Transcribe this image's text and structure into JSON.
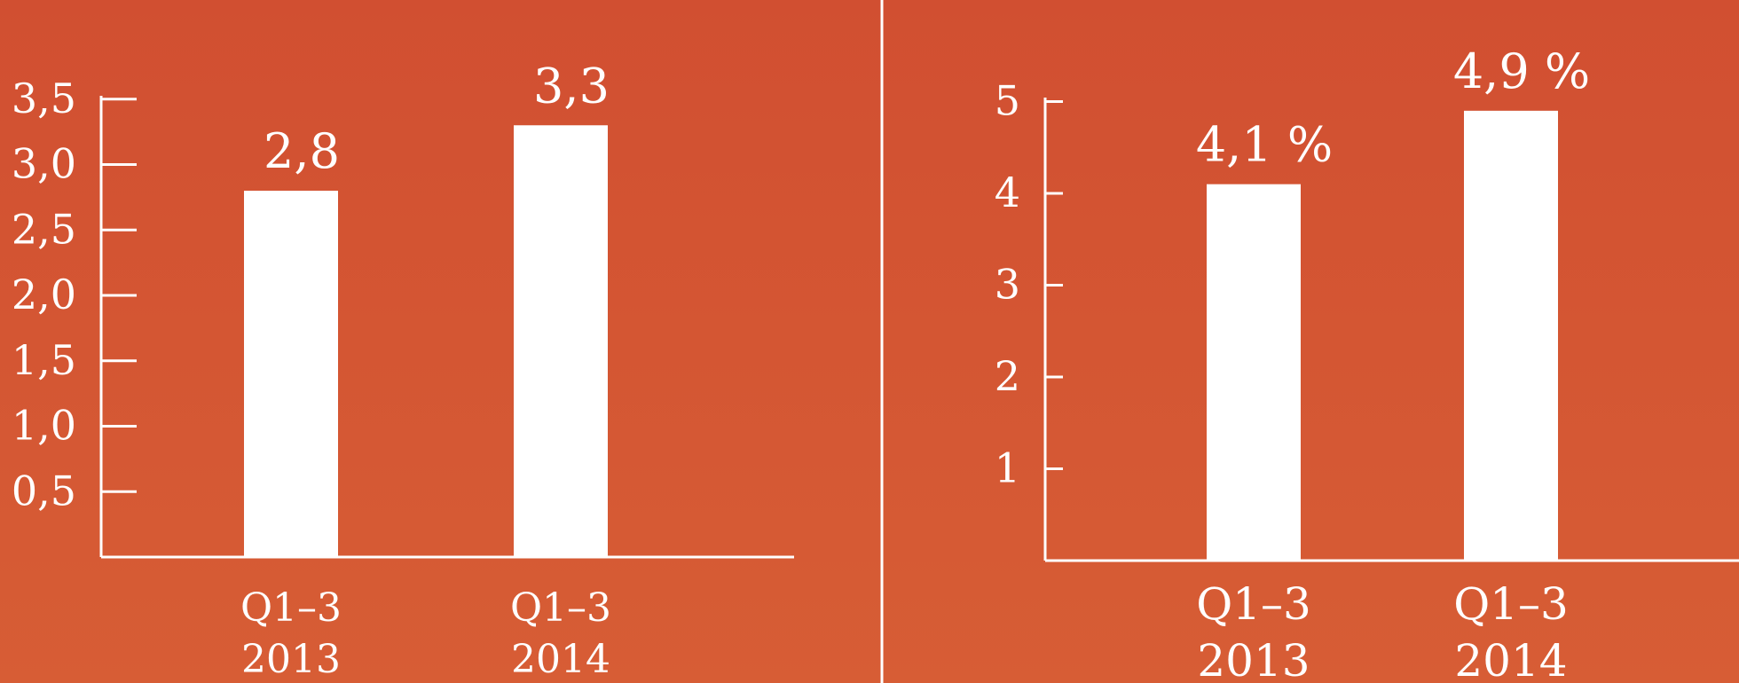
{
  "colors": {
    "background": "#d3532f",
    "bar": "#ffffff",
    "axis": "#ffffff",
    "text": "#ffffff",
    "divider": "#ffffff"
  },
  "chart_data": [
    {
      "type": "bar",
      "categories": [
        [
          "Q1–3",
          "2013"
        ],
        [
          "Q1–3",
          "2014"
        ]
      ],
      "values": [
        2.8,
        3.3
      ],
      "data_labels": [
        "2,8",
        "3,3"
      ],
      "ylim": [
        0,
        3.5
      ],
      "yticks": [
        0.5,
        1.0,
        1.5,
        2.0,
        2.5,
        3.0,
        3.5
      ],
      "ytick_labels": [
        "0,5",
        "1,0",
        "1,5",
        "2,0",
        "2,5",
        "3,0",
        "3,5"
      ],
      "grid": false
    },
    {
      "type": "bar",
      "categories": [
        [
          "Q1–3",
          "2013"
        ],
        [
          "Q1–3",
          "2014"
        ]
      ],
      "values": [
        4.1,
        4.9
      ],
      "data_labels": [
        "4,1 %",
        "4,9 %"
      ],
      "ylim": [
        0,
        5
      ],
      "yticks": [
        1,
        2,
        3,
        4,
        5
      ],
      "ytick_labels": [
        "1",
        "2",
        "3",
        "4",
        "5"
      ],
      "grid": false
    }
  ]
}
